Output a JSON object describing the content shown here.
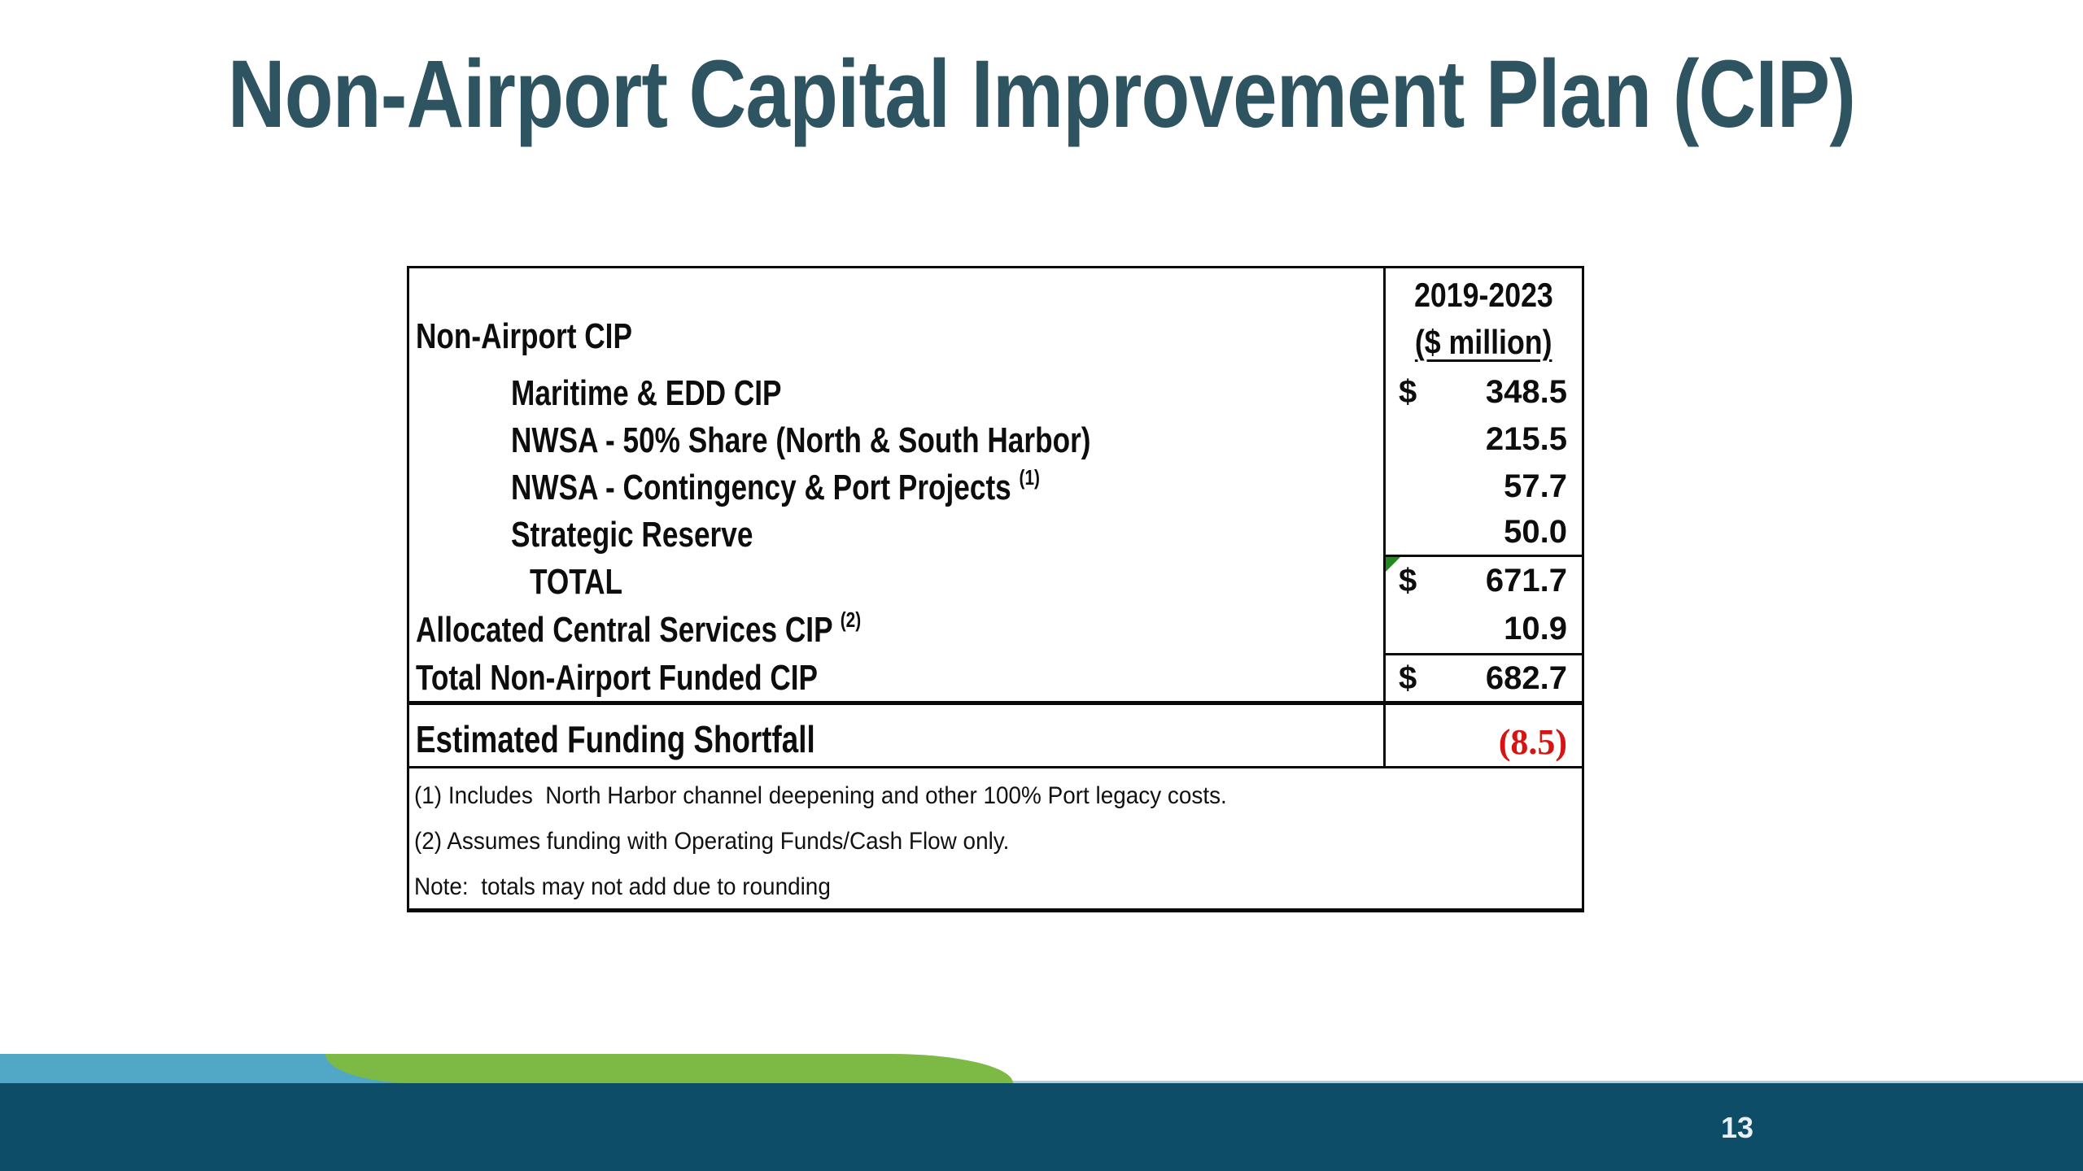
{
  "slide": {
    "title": "Non-Airport Capital Improvement Plan (CIP)",
    "page_number": "13"
  },
  "colors": {
    "title_teal": "#2d5460",
    "footer_band": "#0d4d68",
    "wave_blue": "#51a8c6",
    "wave_green": "#7cba45",
    "shortfall_red": "#d61414",
    "corner_marker_green": "#1f8a1f"
  },
  "table": {
    "header": {
      "label": "Non-Airport CIP",
      "period": "2019-2023",
      "unit": "($ million)"
    },
    "rows": [
      {
        "label": "Maritime & EDD CIP",
        "currency": "$",
        "value": "348.5"
      },
      {
        "label": "NWSA - 50% Share (North & South Harbor)",
        "currency": "",
        "value": "215.5"
      },
      {
        "label": "NWSA - Contingency & Port Projects",
        "sup": "(1)",
        "currency": "",
        "value": "57.7"
      },
      {
        "label": "Strategic Reserve",
        "currency": "",
        "value": "50.0"
      },
      {
        "label": "TOTAL",
        "currency": "$",
        "value": "671.7"
      },
      {
        "label": "Allocated Central Services CIP",
        "sup": "(2)",
        "currency": "",
        "value": "10.9"
      },
      {
        "label": "Total Non-Airport Funded CIP",
        "currency": "$",
        "value": "682.7"
      }
    ],
    "shortfall": {
      "label": "Estimated Funding Shortfall",
      "value": "(8.5)"
    },
    "footnotes": [
      "(1) Includes  North Harbor channel deepening and other 100% Port legacy costs.",
      "(2) Assumes funding with Operating Funds/Cash Flow only.",
      "Note:  totals may not add due to rounding"
    ]
  }
}
